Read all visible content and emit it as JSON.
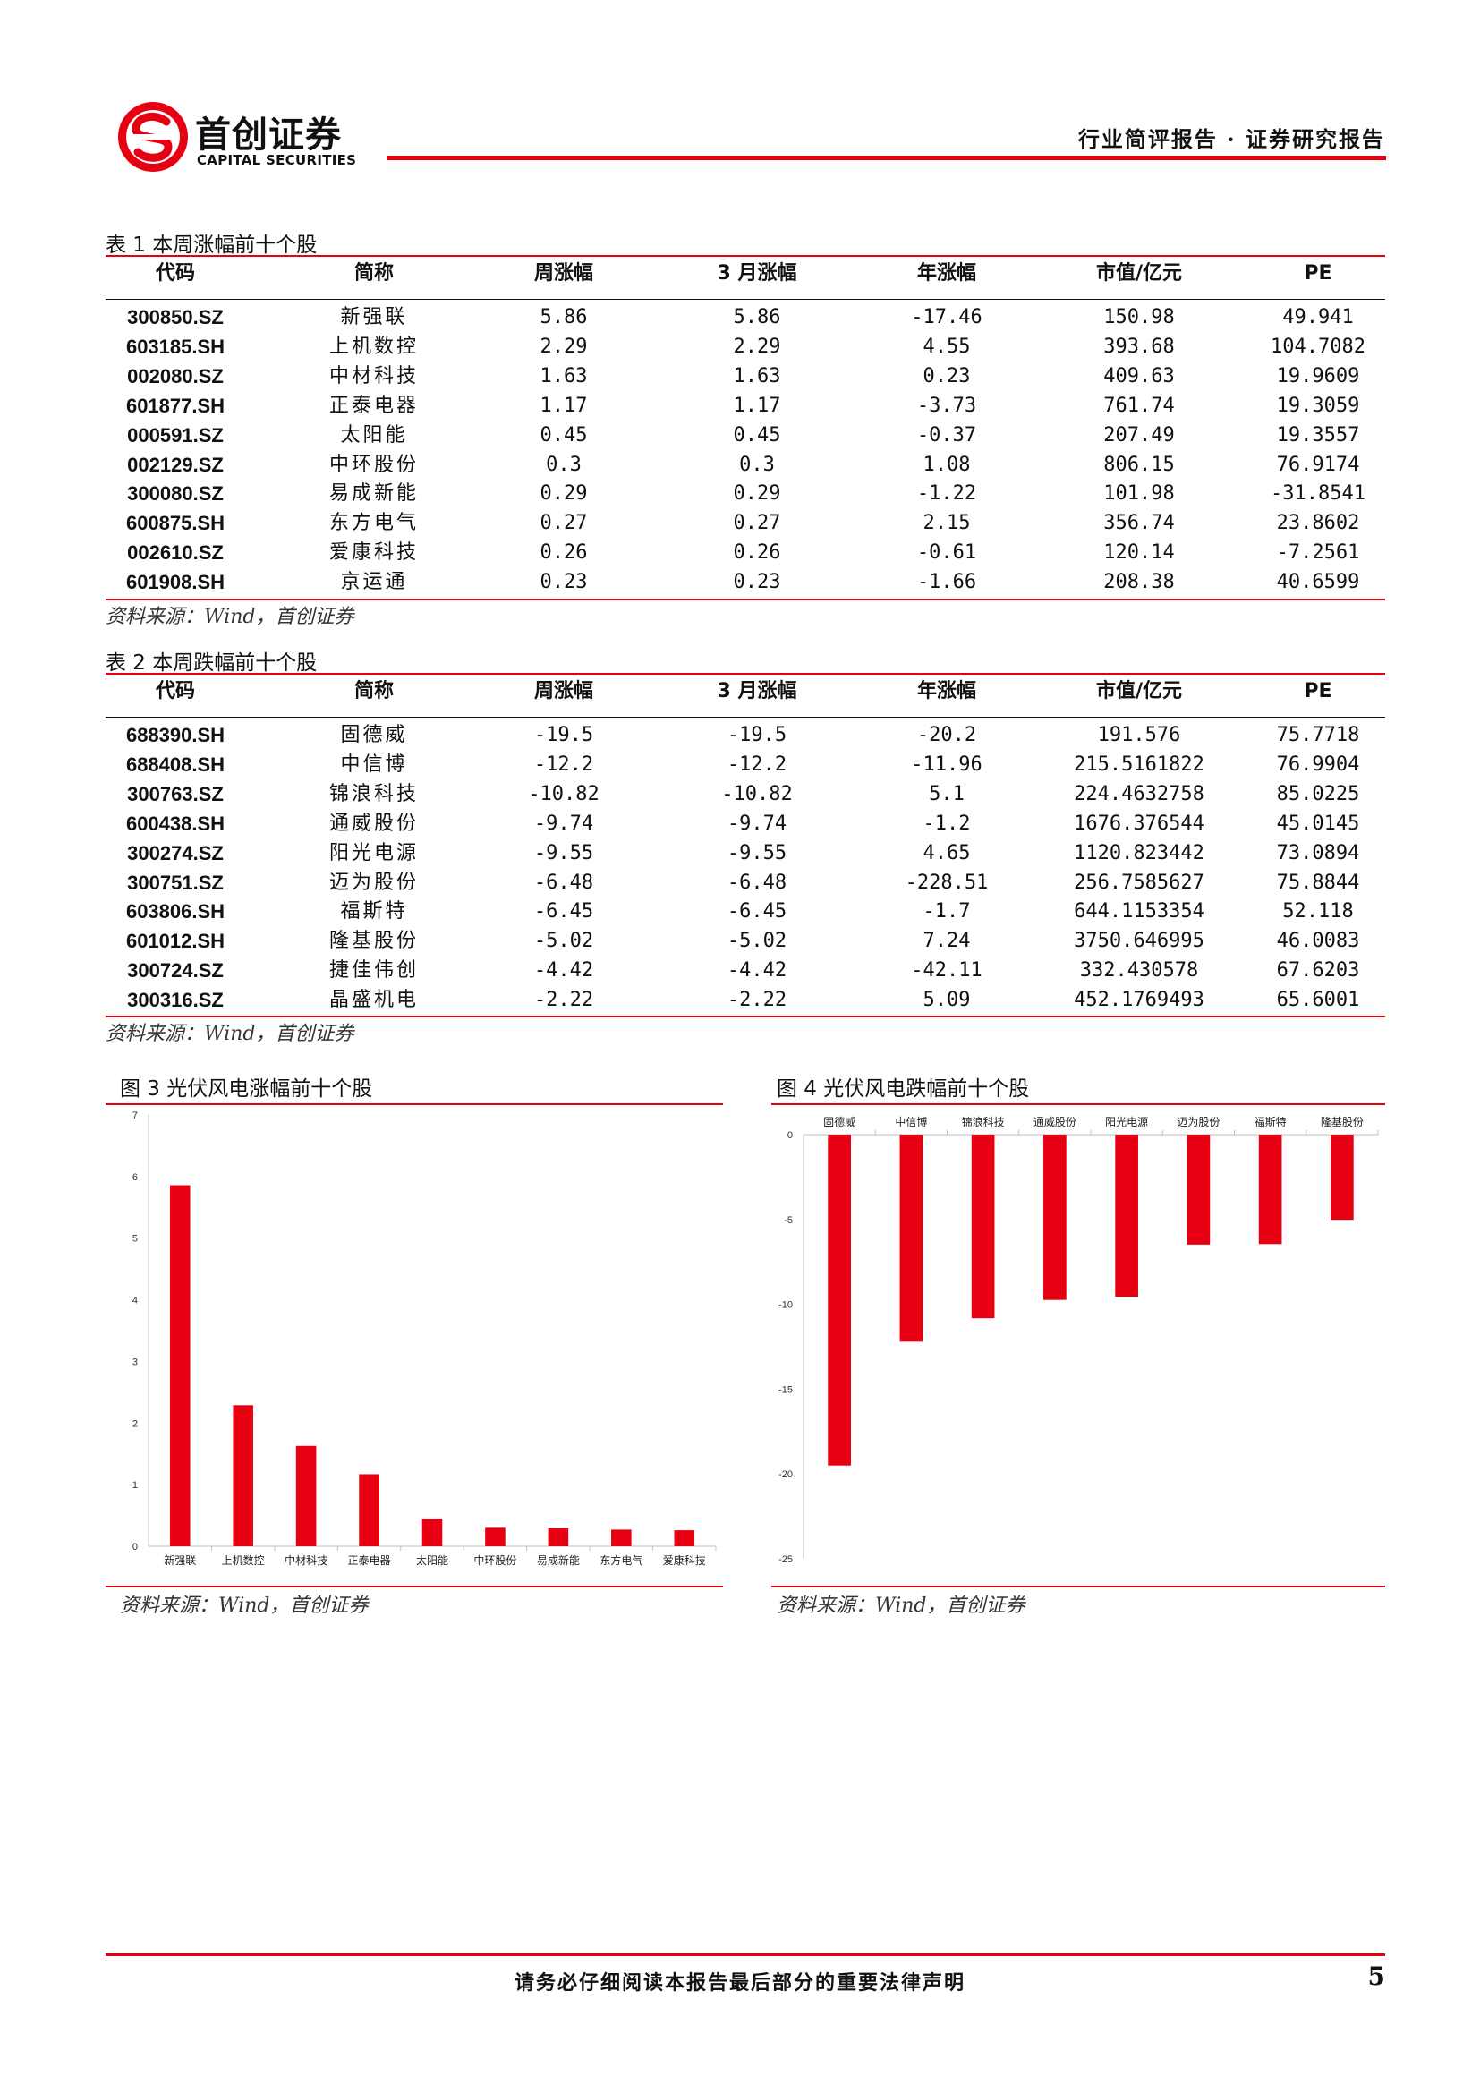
{
  "header": {
    "logo_cn": "首创证券",
    "logo_en": "CAPITAL SECURITIES",
    "report_type": "行业简评报告 · 证券研究报告",
    "brand_color": "#e60012"
  },
  "table1": {
    "caption": "表 1 本周涨幅前十个股",
    "headers": [
      "代码",
      "简称",
      "周涨幅",
      "3 月涨幅",
      "年涨幅",
      "市值/亿元",
      "PE"
    ],
    "rows": [
      [
        "300850.SZ",
        "新强联",
        "5.86",
        "5.86",
        "-17.46",
        "150.98",
        "49.941"
      ],
      [
        "603185.SH",
        "上机数控",
        "2.29",
        "2.29",
        "4.55",
        "393.68",
        "104.7082"
      ],
      [
        "002080.SZ",
        "中材科技",
        "1.63",
        "1.63",
        "0.23",
        "409.63",
        "19.9609"
      ],
      [
        "601877.SH",
        "正泰电器",
        "1.17",
        "1.17",
        "-3.73",
        "761.74",
        "19.3059"
      ],
      [
        "000591.SZ",
        "太阳能",
        "0.45",
        "0.45",
        "-0.37",
        "207.49",
        "19.3557"
      ],
      [
        "002129.SZ",
        "中环股份",
        "0.3",
        "0.3",
        "1.08",
        "806.15",
        "76.9174"
      ],
      [
        "300080.SZ",
        "易成新能",
        "0.29",
        "0.29",
        "-1.22",
        "101.98",
        "-31.8541"
      ],
      [
        "600875.SH",
        "东方电气",
        "0.27",
        "0.27",
        "2.15",
        "356.74",
        "23.8602"
      ],
      [
        "002610.SZ",
        "爱康科技",
        "0.26",
        "0.26",
        "-0.61",
        "120.14",
        "-7.2561"
      ],
      [
        "601908.SH",
        "京运通",
        "0.23",
        "0.23",
        "-1.66",
        "208.38",
        "40.6599"
      ]
    ],
    "source": "资料来源：Wind，首创证券"
  },
  "table2": {
    "caption": "表 2 本周跌幅前十个股",
    "headers": [
      "代码",
      "简称",
      "周涨幅",
      "3 月涨幅",
      "年涨幅",
      "市值/亿元",
      "PE"
    ],
    "rows": [
      [
        "688390.SH",
        "固德威",
        "-19.5",
        "-19.5",
        "-20.2",
        "191.576",
        "75.7718"
      ],
      [
        "688408.SH",
        "中信博",
        "-12.2",
        "-12.2",
        "-11.96",
        "215.5161822",
        "76.9904"
      ],
      [
        "300763.SZ",
        "锦浪科技",
        "-10.82",
        "-10.82",
        "5.1",
        "224.4632758",
        "85.0225"
      ],
      [
        "600438.SH",
        "通威股份",
        "-9.74",
        "-9.74",
        "-1.2",
        "1676.376544",
        "45.0145"
      ],
      [
        "300274.SZ",
        "阳光电源",
        "-9.55",
        "-9.55",
        "4.65",
        "1120.823442",
        "73.0894"
      ],
      [
        "300751.SZ",
        "迈为股份",
        "-6.48",
        "-6.48",
        "-228.51",
        "256.7585627",
        "75.8844"
      ],
      [
        "603806.SH",
        "福斯特",
        "-6.45",
        "-6.45",
        "-1.7",
        "644.1153354",
        "52.118"
      ],
      [
        "601012.SH",
        "隆基股份",
        "-5.02",
        "-5.02",
        "7.24",
        "3750.646995",
        "46.0083"
      ],
      [
        "300724.SZ",
        "捷佳伟创",
        "-4.42",
        "-4.42",
        "-42.11",
        "332.430578",
        "67.6203"
      ],
      [
        "300316.SZ",
        "晶盛机电",
        "-2.22",
        "-2.22",
        "5.09",
        "452.1769493",
        "65.6001"
      ]
    ],
    "source": "资料来源：Wind，首创证券"
  },
  "figure3": {
    "caption": "图 3 光伏风电涨幅前十个股",
    "source": "资料来源：Wind，首创证券"
  },
  "figure4": {
    "caption": "图 4 光伏风电跌幅前十个股",
    "source": "资料来源：Wind，首创证券"
  },
  "chart_data": [
    {
      "type": "bar",
      "categories": [
        "新强联",
        "上机数控",
        "中材科技",
        "正泰电器",
        "太阳能",
        "中环股份",
        "易成新能",
        "东方电气",
        "爱康科技"
      ],
      "values": [
        5.86,
        2.29,
        1.63,
        1.17,
        0.45,
        0.3,
        0.29,
        0.27,
        0.26
      ],
      "ylim": [
        0,
        7
      ],
      "yticks": [
        0,
        1,
        2,
        3,
        4,
        5,
        6,
        7
      ],
      "bar_color": "#e60012",
      "grid": false
    },
    {
      "type": "bar",
      "categories": [
        "固德威",
        "中信博",
        "锦浪科技",
        "通威股份",
        "阳光电源",
        "迈为股份",
        "福斯特",
        "隆基股份"
      ],
      "values": [
        -19.5,
        -12.2,
        -10.82,
        -9.74,
        -9.55,
        -6.48,
        -6.45,
        -5.02
      ],
      "ylim": [
        -25,
        0
      ],
      "yticks": [
        0,
        -5,
        -10,
        -15,
        -20,
        -25
      ],
      "bar_color": "#e60012",
      "grid": false
    }
  ],
  "footer": {
    "notice": "请务必仔细阅读本报告最后部分的重要法律声明",
    "page_number": "5"
  }
}
